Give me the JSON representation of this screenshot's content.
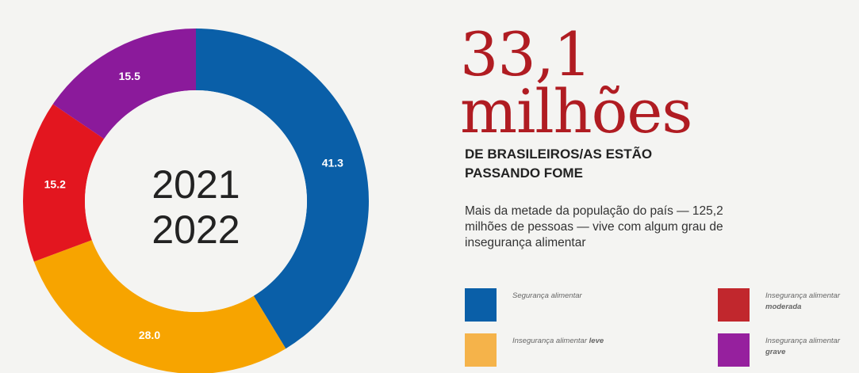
{
  "headline": {
    "number": "33,1",
    "unit": "milhões",
    "subheadline": "DE BRASILEIROS/AS ESTÃO PASSANDO FOME",
    "description": "Mais da metade da população do país — 125,2 milhões de pessoas — vive com algum grau de insegurança alimentar"
  },
  "chart_data": {
    "type": "pie",
    "title": "",
    "center_label": [
      "2021",
      "2022"
    ],
    "categories": [
      "Segurança alimentar",
      "Insegurança alimentar leve",
      "Insegurança alimentar moderada",
      "Insegurança alimentar grave"
    ],
    "values": [
      41.3,
      28.0,
      15.2,
      15.5
    ],
    "value_labels": [
      "41.3",
      "28.0",
      "15.2",
      "15.5"
    ],
    "colors": [
      "#0a5fa8",
      "#f7a400",
      "#e3161f",
      "#8b1a9b"
    ],
    "order_clockwise_from_top": [
      0,
      1,
      2,
      3
    ]
  },
  "legend": [
    {
      "text": "Segurança alimentar",
      "emph": "",
      "color": "#0a5fa8"
    },
    {
      "text": "Insegurança alimentar moderada",
      "emph": "moderada",
      "color": "#c1272d"
    },
    {
      "text": "Insegurança alimentar leve",
      "emph": "leve",
      "color": "#f5b34a"
    },
    {
      "text": "Insegurança alimentar grave",
      "emph": "grave",
      "color": "#96209e"
    }
  ]
}
